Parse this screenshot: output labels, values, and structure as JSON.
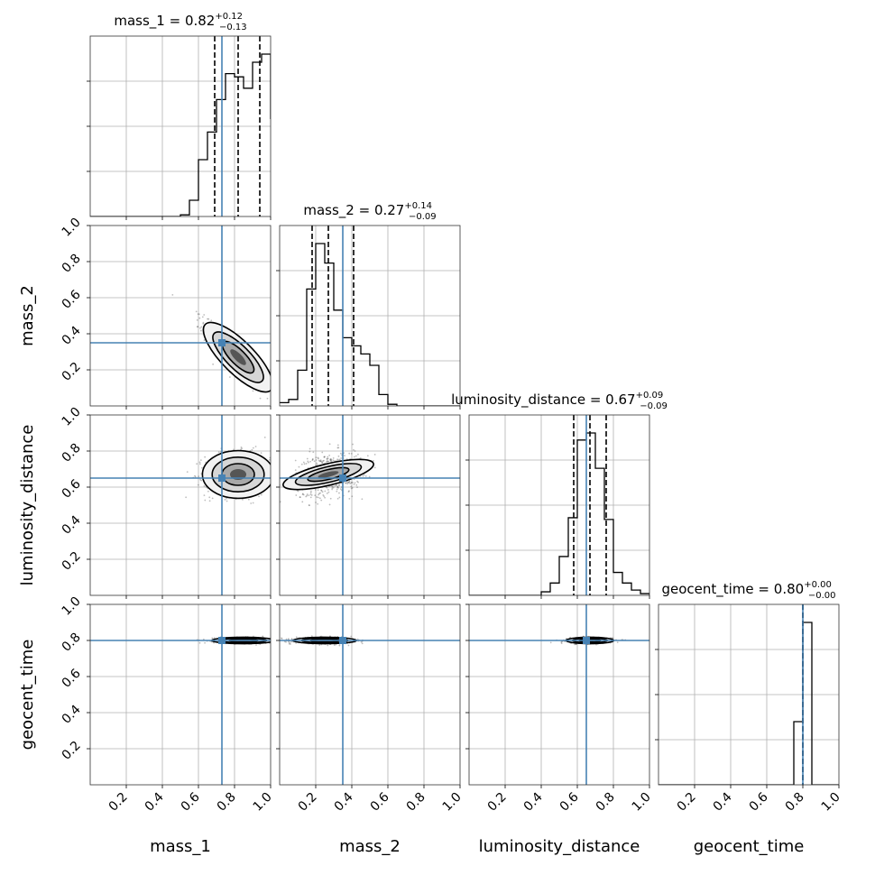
{
  "chart_data": {
    "type": "corner",
    "parameters": [
      "mass_1",
      "mass_2",
      "luminosity_distance",
      "geocent_time"
    ],
    "axis_labels": [
      "mass_1",
      "mass_2",
      "luminosity_distance",
      "geocent_time"
    ],
    "range": [
      0,
      1
    ],
    "tick_values": [
      0.2,
      0.4,
      0.6,
      0.8,
      1.0
    ],
    "tick_labels": [
      "0.2",
      "0.4",
      "0.6",
      "0.8",
      "1.0"
    ],
    "grid": true,
    "truth_color": "#4682b4",
    "titles": [
      {
        "prefix": "mass_1 = ",
        "median": "0.82",
        "plus": "+0.12",
        "minus": "−0.13"
      },
      {
        "prefix": "mass_2 = ",
        "median": "0.27",
        "plus": "+0.14",
        "minus": "−0.09"
      },
      {
        "prefix": "luminosity_distance = ",
        "median": "0.67",
        "plus": "+0.09",
        "minus": "−0.09"
      },
      {
        "prefix": "geocent_time = ",
        "median": "0.80",
        "plus": "+0.00",
        "minus": "−0.00"
      }
    ],
    "truths": [
      0.73,
      0.35,
      0.65,
      0.8
    ],
    "quantiles": [
      [
        0.69,
        0.82,
        0.94
      ],
      [
        0.18,
        0.27,
        0.41
      ],
      [
        0.58,
        0.67,
        0.76
      ],
      [
        0.8,
        0.8,
        0.8
      ]
    ],
    "histograms": [
      {
        "edges": [
          0.0,
          0.05,
          0.1,
          0.15,
          0.2,
          0.25,
          0.3,
          0.35,
          0.4,
          0.45,
          0.5,
          0.55,
          0.6,
          0.65,
          0.7,
          0.75,
          0.8,
          0.85,
          0.9,
          0.95,
          1.0
        ],
        "counts": [
          0,
          0,
          0,
          0,
          0,
          0,
          0,
          0,
          0,
          0,
          0.01,
          0.1,
          0.35,
          0.52,
          0.72,
          0.88,
          0.86,
          0.79,
          0.95,
          1.0,
          0.6
        ]
      },
      {
        "edges": [
          0.0,
          0.05,
          0.1,
          0.15,
          0.2,
          0.25,
          0.3,
          0.35,
          0.4,
          0.45,
          0.5,
          0.55,
          0.6,
          0.65,
          0.7,
          0.75,
          0.8,
          0.85,
          0.9,
          0.95,
          1.0
        ],
        "counts": [
          0.02,
          0.04,
          0.22,
          0.72,
          1.0,
          0.88,
          0.59,
          0.42,
          0.37,
          0.32,
          0.25,
          0.07,
          0.01,
          0,
          0,
          0,
          0,
          0,
          0,
          0,
          0
        ]
      },
      {
        "edges": [
          0.0,
          0.05,
          0.1,
          0.15,
          0.2,
          0.25,
          0.3,
          0.35,
          0.4,
          0.45,
          0.5,
          0.55,
          0.6,
          0.65,
          0.7,
          0.75,
          0.8,
          0.85,
          0.9,
          0.95,
          1.0
        ],
        "counts": [
          0,
          0,
          0,
          0,
          0,
          0,
          0,
          0,
          0.02,
          0.07,
          0.22,
          0.44,
          0.88,
          0.92,
          0.72,
          0.43,
          0.13,
          0.07,
          0.03,
          0.01,
          0
        ]
      },
      {
        "edges": [
          0.0,
          0.05,
          0.1,
          0.15,
          0.2,
          0.25,
          0.3,
          0.35,
          0.4,
          0.45,
          0.5,
          0.55,
          0.6,
          0.65,
          0.7,
          0.75,
          0.8,
          0.85,
          0.9,
          0.95,
          1.0
        ],
        "counts": [
          0,
          0,
          0,
          0,
          0,
          0,
          0,
          0,
          0,
          0,
          0,
          0,
          0,
          0,
          0,
          0.35,
          0.9,
          0,
          0,
          0,
          0
        ]
      }
    ],
    "pairs": [
      {
        "x": 0,
        "y": 1,
        "center": [
          0.82,
          0.27
        ],
        "sd": [
          0.09,
          0.09
        ],
        "corr": -0.9
      },
      {
        "x": 0,
        "y": 2,
        "center": [
          0.82,
          0.67
        ],
        "sd": [
          0.09,
          0.06
        ],
        "corr": 0.0
      },
      {
        "x": 1,
        "y": 2,
        "center": [
          0.27,
          0.67
        ],
        "sd": [
          0.09,
          0.06
        ],
        "corr": 0.25
      },
      {
        "x": 0,
        "y": 3,
        "center": [
          0.85,
          0.8
        ],
        "sd": [
          0.08,
          0.008
        ],
        "corr": 0.0
      },
      {
        "x": 1,
        "y": 3,
        "center": [
          0.25,
          0.8
        ],
        "sd": [
          0.08,
          0.008
        ],
        "corr": 0.0
      },
      {
        "x": 2,
        "y": 3,
        "center": [
          0.67,
          0.8
        ],
        "sd": [
          0.06,
          0.008
        ],
        "corr": 0.0
      }
    ]
  }
}
